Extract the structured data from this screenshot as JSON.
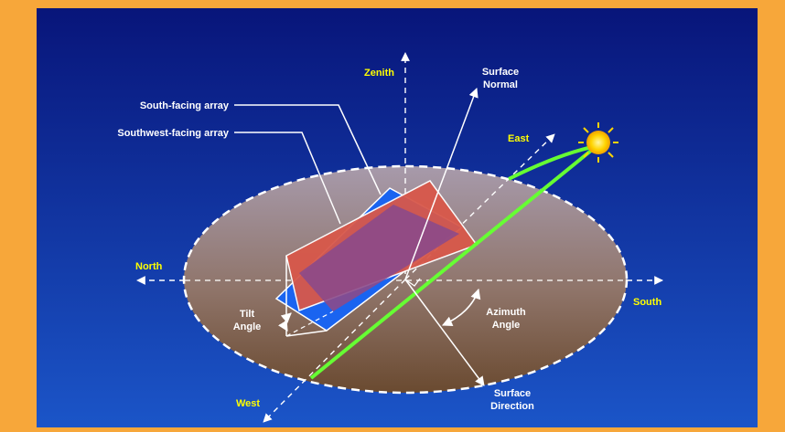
{
  "colors": {
    "frame": "#f7a73a",
    "background_top": "#08157a",
    "background_bottom": "#1b55c8",
    "ground_top": "#a79aab",
    "ground_bottom": "#6a4a30",
    "compass_label": "#ffff00",
    "label": "#ffffff",
    "sun_path": "#66ff33",
    "south_array": "#d8584a",
    "southwest_array": "#1a64f0",
    "overlap": "#8c4a8a",
    "sun": "#ffd400"
  },
  "compass": {
    "zenith": "Zenith",
    "north": "North",
    "south": "South",
    "east": "East",
    "west": "West"
  },
  "labels": {
    "south_facing_array": "South-facing array",
    "southwest_facing_array": "Southwest-facing array",
    "surface_normal_line1": "Surface",
    "surface_normal_line2": "Normal",
    "tilt_angle_line1": "Tilt",
    "tilt_angle_line2": "Angle",
    "azimuth_angle_line1": "Azimuth",
    "azimuth_angle_line2": "Angle",
    "surface_direction_line1": "Surface",
    "surface_direction_line2": "Direction"
  },
  "icons": {
    "sun": "sun-icon"
  }
}
